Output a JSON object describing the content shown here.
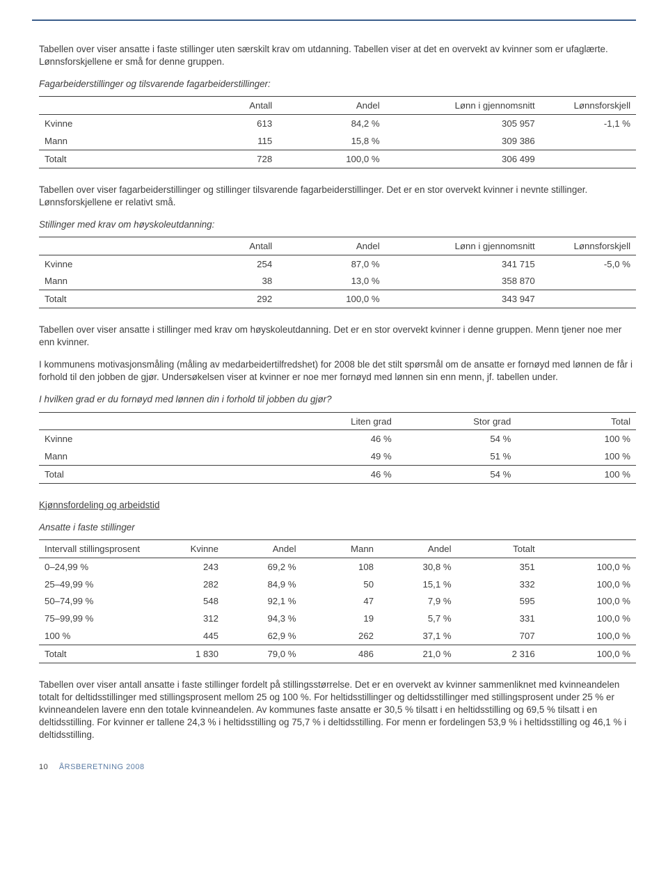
{
  "p_intro1": "Tabellen over viser ansatte i faste stillinger uten særskilt krav om utdanning. Tabellen viser at det en overvekt av kvinner som er ufaglærte. Lønnsforskjellene er små for denne gruppen.",
  "t1_caption": "Fagarbeiderstillinger og tilsvarende fagarbeiderstillinger:",
  "h_antall": "Antall",
  "h_andel": "Andel",
  "h_lonn": "Lønn i gjennomsnitt",
  "h_forskjell": "Lønnsforskjell",
  "l_kvinne": "Kvinne",
  "l_mann": "Mann",
  "l_totalt": "Totalt",
  "l_total": "Total",
  "t1": {
    "kvinne": {
      "antall": "613",
      "andel": "84,2 %",
      "lonn": "305 957",
      "forskjell": "-1,1 %"
    },
    "mann": {
      "antall": "115",
      "andel": "15,8 %",
      "lonn": "309 386"
    },
    "totalt": {
      "antall": "728",
      "andel": "100,0 %",
      "lonn": "306 499"
    }
  },
  "p_mid1": "Tabellen over viser fagarbeiderstillinger og stillinger tilsvarende fagarbeiderstillinger. Det er en stor overvekt kvinner i nevnte stillinger. Lønnsforskjellene er relativt små.",
  "t2_caption": "Stillinger med krav om høyskoleutdanning:",
  "t2": {
    "kvinne": {
      "antall": "254",
      "andel": "87,0 %",
      "lonn": "341 715",
      "forskjell": "-5,0 %"
    },
    "mann": {
      "antall": "38",
      "andel": "13,0 %",
      "lonn": "358 870"
    },
    "totalt": {
      "antall": "292",
      "andel": "100,0 %",
      "lonn": "343 947"
    }
  },
  "p_mid2": "Tabellen over viser ansatte i stillinger med krav om høyskoleutdanning. Det er en stor overvekt kvinner i denne gruppen. Menn tjener noe mer enn kvinner.",
  "p_mid3": "I kommunens motivasjonsmåling (måling av medarbeidertilfredshet) for 2008 ble det stilt spørsmål om de ansatte er fornøyd med lønnen de får i forhold til den jobben de gjør. Undersøkelsen viser at kvinner er noe mer fornøyd med lønnen sin enn menn, jf. tabellen under.",
  "t3_caption": "I hvilken grad er du fornøyd med lønnen din i forhold til jobben du gjør?",
  "t3_h1": "Liten grad",
  "t3_h2": "Stor grad",
  "t3_h3": "Total",
  "t3": {
    "kvinne": {
      "l": "46 %",
      "s": "54 %",
      "t": "100 %"
    },
    "mann": {
      "l": "49 %",
      "s": "51 %",
      "t": "100 %"
    },
    "total": {
      "l": "46 %",
      "s": "54 %",
      "t": "100 %"
    }
  },
  "sec_heading": "Kjønnsfordeling og arbeidstid",
  "t4_caption": "Ansatte i faste stillinger",
  "t4_h_intervall": "Intervall stillingsprosent",
  "t4_h_kvinne": "Kvinne",
  "t4_h_andel": "Andel",
  "t4_h_mann": "Mann",
  "t4_h_totalt": "Totalt",
  "t4_rows": [
    {
      "label": "0–24,99 %",
      "k": "243",
      "ka": "69,2 %",
      "m": "108",
      "ma": "30,8 %",
      "t": "351",
      "p": "100,0 %"
    },
    {
      "label": "25–49,99 %",
      "k": "282",
      "ka": "84,9 %",
      "m": "50",
      "ma": "15,1 %",
      "t": "332",
      "p": "100,0 %"
    },
    {
      "label": "50–74,99 %",
      "k": "548",
      "ka": "92,1 %",
      "m": "47",
      "ma": "7,9 %",
      "t": "595",
      "p": "100,0 %"
    },
    {
      "label": "75–99,99 %",
      "k": "312",
      "ka": "94,3 %",
      "m": "19",
      "ma": "5,7 %",
      "t": "331",
      "p": "100,0 %"
    },
    {
      "label": "100 %",
      "k": "445",
      "ka": "62,9 %",
      "m": "262",
      "ma": "37,1 %",
      "t": "707",
      "p": "100,0 %"
    }
  ],
  "t4_total": {
    "label": "Totalt",
    "k": "1 830",
    "ka": "79,0 %",
    "m": "486",
    "ma": "21,0 %",
    "t": "2 316",
    "p": "100,0 %"
  },
  "p_end": "Tabellen over viser antall ansatte i faste stillinger fordelt på stillingsstørrelse. Det er en overvekt av kvinner sammenliknet med kvinneandelen totalt for deltidsstillinger med stillingsprosent mellom 25 og 100 %. For heltidsstillinger og deltidsstillinger med stillingsprosent under 25 % er kvinneandelen lavere enn den totale kvinneandelen. Av kommunes faste ansatte er 30,5 % tilsatt i en heltidsstilling og 69,5 % tilsatt i en deltidsstilling. For kvinner er tallene 24,3 % i heltidsstilling og 75,7 % i deltidsstilling. For menn er fordelingen 53,9 % i heltidsstilling og 46,1 % i deltidsstilling.",
  "footer_pg": "10",
  "footer_text": "ÅRSBERETNING 2008"
}
